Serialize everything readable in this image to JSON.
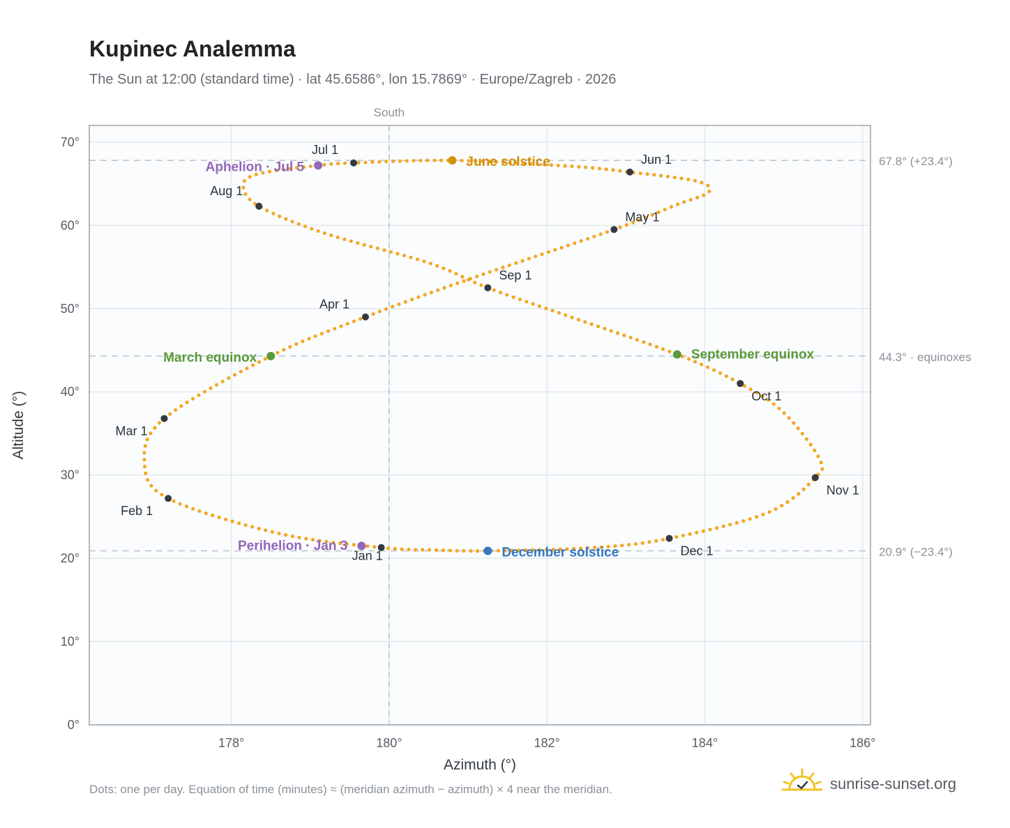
{
  "title": "Kupinec Analemma",
  "subtitle": "The Sun at 12:00 (standard time) · lat 45.6586°, lon 15.7869° · Europe/Zagreb · 2026",
  "footnote": "Dots: one per day. Equation of time (minutes) ≈ (meridian azimuth − azimuth) × 4 near the meridian.",
  "brand": "sunrise-sunset.org",
  "colors": {
    "path": "#f5a623",
    "month_dot": "#343a40",
    "june": "#d4900a",
    "december": "#3478c0",
    "equinox": "#5a9a3a",
    "apsis": "#9266b8",
    "grid": "#e3e8ec",
    "axis": "#9aa4ae",
    "ref_line": "#b9c2ca"
  },
  "chart_data": {
    "type": "scatter",
    "xlabel": "Azimuth (°)",
    "ylabel": "Altitude (°)",
    "xlim": [
      176.2,
      186.1
    ],
    "ylim": [
      0,
      72
    ],
    "x_ticks": [
      178,
      180,
      182,
      184,
      186
    ],
    "x_tick_labels": [
      "178°",
      "180°",
      "182°",
      "184°",
      "186°"
    ],
    "y_ticks": [
      0,
      10,
      20,
      30,
      40,
      50,
      60,
      70
    ],
    "y_tick_labels": [
      "0°",
      "10°",
      "20°",
      "30°",
      "40°",
      "50°",
      "60°",
      "70°"
    ],
    "grid": true,
    "meridian": {
      "x": 180,
      "label": "South"
    },
    "reference_lines": [
      {
        "y": 67.8,
        "label": "67.8° (+23.4°)"
      },
      {
        "y": 44.3,
        "label": "44.3° · equinoxes"
      },
      {
        "y": 20.9,
        "label": "20.9° (−23.4°)"
      }
    ],
    "daily_path": [
      [
        179.9,
        21.3
      ],
      [
        178.6,
        23.0
      ],
      [
        177.2,
        27.2
      ],
      [
        176.9,
        31.5
      ],
      [
        177.15,
        36.8
      ],
      [
        178.5,
        44.3
      ],
      [
        179.7,
        49.0
      ],
      [
        181.0,
        53.5
      ],
      [
        182.85,
        59.5
      ],
      [
        183.65,
        62.5
      ],
      [
        184.05,
        64.0
      ],
      [
        183.9,
        65.3
      ],
      [
        183.05,
        66.4
      ],
      [
        182.3,
        67.1
      ],
      [
        180.8,
        67.8
      ],
      [
        179.55,
        67.5
      ],
      [
        179.1,
        67.2
      ],
      [
        178.35,
        66.2
      ],
      [
        178.15,
        64.8
      ],
      [
        178.35,
        62.3
      ],
      [
        179.2,
        59.0
      ],
      [
        180.5,
        55.5
      ],
      [
        181.25,
        52.5
      ],
      [
        182.3,
        49.0
      ],
      [
        183.65,
        44.5
      ],
      [
        184.45,
        41.0
      ],
      [
        185.0,
        37.5
      ],
      [
        185.45,
        32.0
      ],
      [
        185.4,
        29.7
      ],
      [
        184.8,
        25.5
      ],
      [
        183.55,
        22.4
      ],
      [
        182.6,
        21.3
      ],
      [
        181.25,
        20.9
      ],
      [
        180.6,
        21.0
      ],
      [
        179.9,
        21.3
      ]
    ],
    "month_markers": [
      {
        "label": "Jan 1",
        "x": 179.9,
        "y": 21.3
      },
      {
        "label": "Feb 1",
        "x": 177.2,
        "y": 27.2
      },
      {
        "label": "Mar 1",
        "x": 177.15,
        "y": 36.8
      },
      {
        "label": "Apr 1",
        "x": 179.7,
        "y": 49.0
      },
      {
        "label": "May 1",
        "x": 182.85,
        "y": 59.5
      },
      {
        "label": "Jun 1",
        "x": 183.05,
        "y": 66.4
      },
      {
        "label": "Jul 1",
        "x": 179.55,
        "y": 67.5
      },
      {
        "label": "Aug 1",
        "x": 178.35,
        "y": 62.3
      },
      {
        "label": "Sep 1",
        "x": 181.25,
        "y": 52.5
      },
      {
        "label": "Oct 1",
        "x": 184.45,
        "y": 41.0
      },
      {
        "label": "Nov 1",
        "x": 185.4,
        "y": 29.7
      },
      {
        "label": "Dec 1",
        "x": 183.55,
        "y": 22.4
      }
    ],
    "key_points": [
      {
        "label": "June solstice",
        "x": 180.8,
        "y": 67.8,
        "color": "june"
      },
      {
        "label": "December solstice",
        "x": 181.25,
        "y": 20.9,
        "color": "december"
      },
      {
        "label": "March equinox",
        "x": 178.5,
        "y": 44.3,
        "color": "equinox"
      },
      {
        "label": "September equinox",
        "x": 183.65,
        "y": 44.5,
        "color": "equinox"
      },
      {
        "label": "Aphelion · Jul 5",
        "x": 179.1,
        "y": 67.2,
        "color": "apsis"
      },
      {
        "label": "Perihelion · Jan 3",
        "x": 179.65,
        "y": 21.5,
        "color": "apsis"
      }
    ]
  }
}
